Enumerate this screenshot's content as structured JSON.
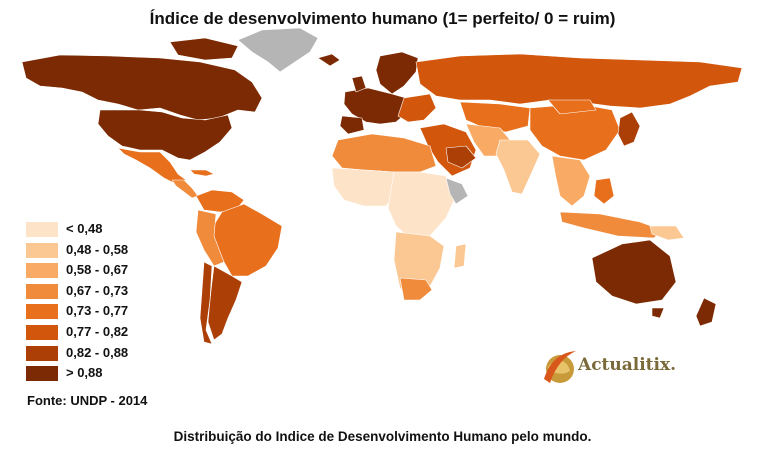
{
  "title": "Índice de desenvolvimento humano (1= perfeito/ 0 = ruim)",
  "legend": [
    {
      "label": "< 0,48",
      "color": "#fde4c8"
    },
    {
      "label": "0,48 - 0,58",
      "color": "#fbc894"
    },
    {
      "label": "0,58 - 0,67",
      "color": "#f9ab66"
    },
    {
      "label": "0,67 - 0,73",
      "color": "#f18b3c"
    },
    {
      "label": "0,73 - 0,77",
      "color": "#e86f1c"
    },
    {
      "label": "0,77 - 0,82",
      "color": "#d2560c"
    },
    {
      "label": "0,82 - 0,88",
      "color": "#ac3f06"
    },
    {
      "label": "> 0,88",
      "color": "#7c2a03"
    }
  ],
  "no_data_color": "#b5b5b5",
  "source": "Fonte: UNDP - 2014",
  "caption": "Distribuição do Indice de Desenvolvimento Humano pelo mundo.",
  "logo": {
    "text": "Actualitix.",
    "icon": "globe-swoosh-icon"
  }
}
